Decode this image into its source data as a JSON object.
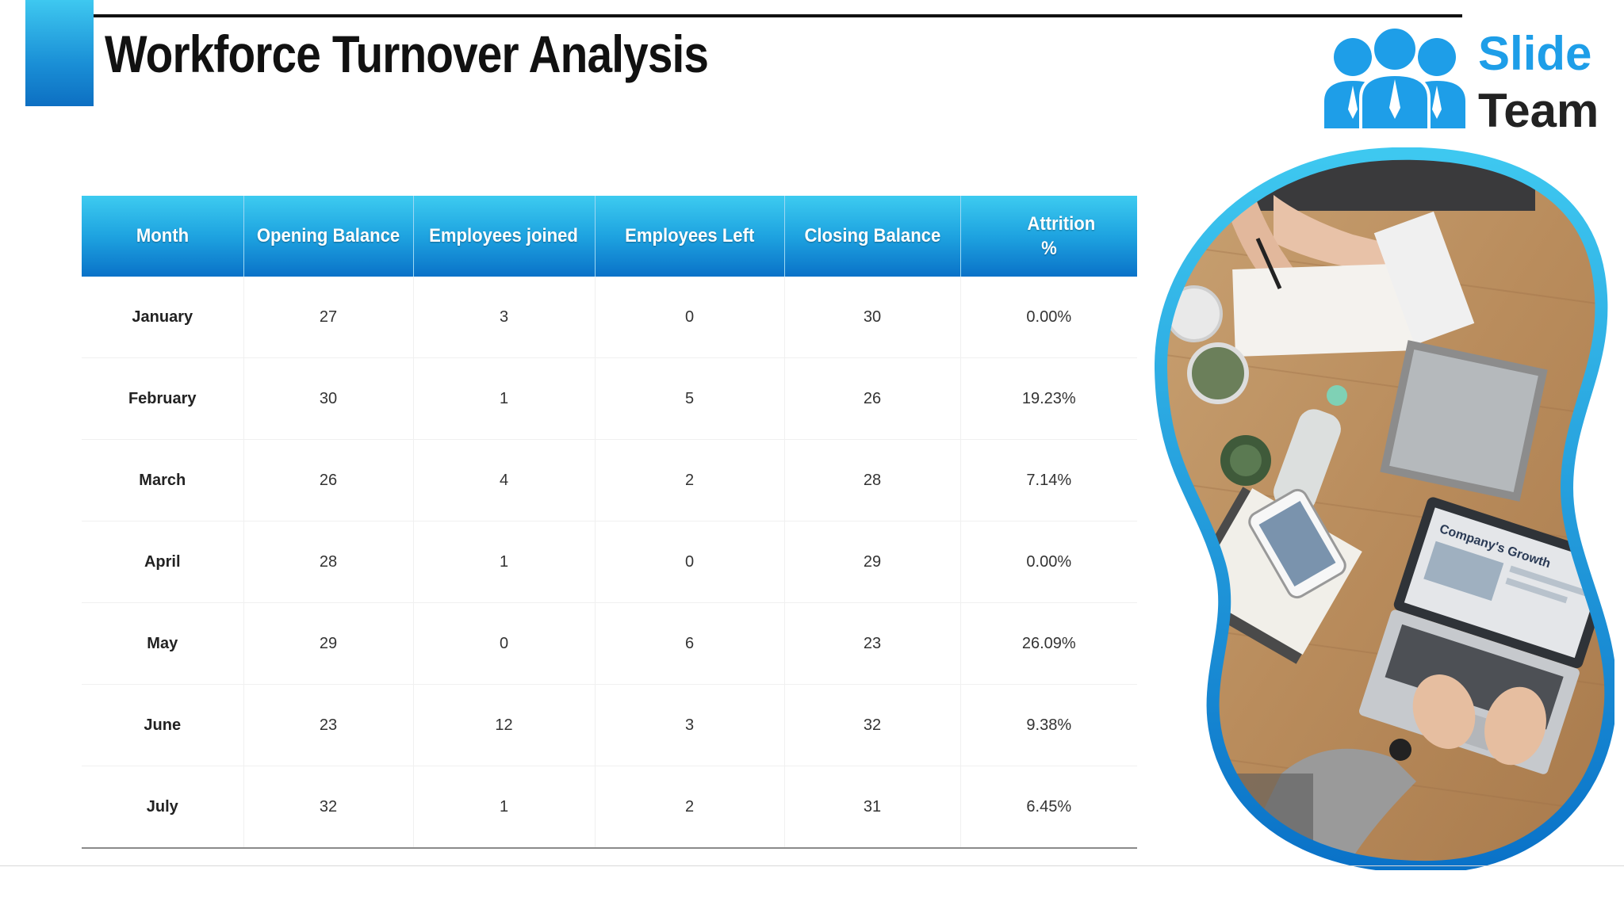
{
  "slide": {
    "title": "Workforce Turnover Analysis"
  },
  "logo": {
    "line1": "Slide",
    "line2": "Team",
    "colors": {
      "accent": "#1e9ee8",
      "dark": "#222222"
    }
  },
  "table": {
    "headers": [
      "Month",
      "Opening Balance",
      "Employees joined",
      "Employees Left",
      "Closing Balance",
      "Attrition %"
    ],
    "rows": [
      [
        "January",
        "27",
        "3",
        "0",
        "30",
        "0.00%"
      ],
      [
        "February",
        "30",
        "1",
        "5",
        "26",
        "19.23%"
      ],
      [
        "March",
        "26",
        "4",
        "2",
        "28",
        "7.14%"
      ],
      [
        "April",
        "28",
        "1",
        "0",
        "29",
        "0.00%"
      ],
      [
        "May",
        "29",
        "0",
        "6",
        "23",
        "26.09%"
      ],
      [
        "June",
        "23",
        "12",
        "3",
        "32",
        "9.38%"
      ],
      [
        "July",
        "32",
        "1",
        "2",
        "31",
        "6.45%"
      ]
    ]
  },
  "photo": {
    "laptop_screen_text": "Company's Growth"
  },
  "colors": {
    "header_top": "#3dcbf0",
    "header_bottom": "#0a72c8",
    "blob_outline": "#1ea3e0"
  }
}
